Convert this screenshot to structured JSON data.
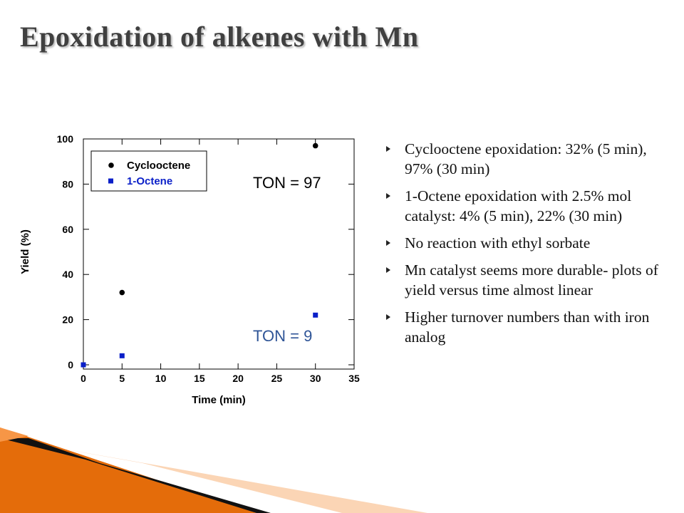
{
  "title": "Epoxidation of alkenes with Mn",
  "bullets": [
    "Cyclooctene epoxidation: 32% (5 min), 97% (30 min)",
    "1-Octene epoxidation with 2.5% mol catalyst: 4% (5 min), 22% (30 min)",
    "No reaction with ethyl sorbate",
    "Mn catalyst seems more durable- plots of yield versus time almost linear",
    "Higher turnover numbers than with iron analog"
  ],
  "chart_data": {
    "type": "scatter",
    "x_label": "Time (min)",
    "y_label": "Yield (%)",
    "xlim": [
      0,
      35
    ],
    "xticks": [
      0,
      5,
      10,
      15,
      20,
      25,
      30,
      35
    ],
    "ylim": [
      0,
      100
    ],
    "yticks": [
      0,
      20,
      40,
      60,
      80,
      100
    ],
    "legend": "top-left",
    "series": [
      {
        "name": "Cyclooctene",
        "color": "#000000",
        "marker": "circle",
        "x": [
          5,
          30
        ],
        "values": [
          32,
          97
        ]
      },
      {
        "name": "1-Octene",
        "color": "#0a1fc8",
        "marker": "square",
        "x": [
          0,
          5,
          30
        ],
        "values": [
          0,
          4,
          22
        ]
      }
    ],
    "annotations": [
      {
        "text": "TON = 97",
        "color": "#000000"
      },
      {
        "text": "TON = 9",
        "color": "#2f5597"
      }
    ]
  }
}
